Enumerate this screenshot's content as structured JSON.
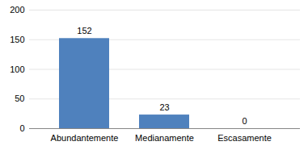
{
  "chart_data": {
    "type": "bar",
    "categories": [
      "Abundantemente",
      "Medianamente",
      "Escasamente"
    ],
    "values": [
      152,
      23,
      0
    ],
    "color": "#4f81bd",
    "ylim": [
      0,
      200
    ],
    "yticks": [
      0,
      50,
      100,
      150,
      200
    ],
    "grid": true,
    "data_labels": true
  }
}
